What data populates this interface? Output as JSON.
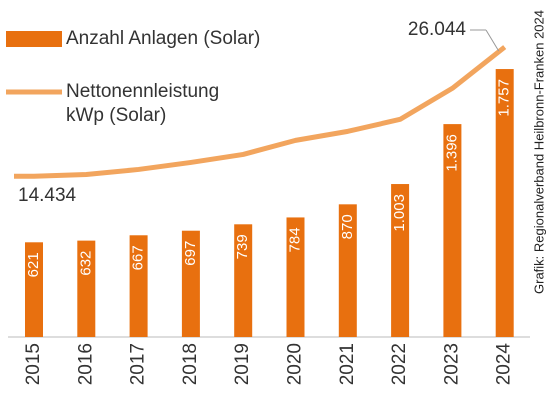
{
  "chart_data": {
    "type": "bar",
    "categories": [
      "2015",
      "2016",
      "2017",
      "2018",
      "2019",
      "2020",
      "2021",
      "2022",
      "2023",
      "2024"
    ],
    "series": [
      {
        "name": "Anzahl Anlagen (Solar)",
        "type": "bar",
        "color": "#e8700f",
        "values": [
          621,
          632,
          667,
          697,
          739,
          784,
          870,
          1003,
          1396,
          1757
        ],
        "value_labels": [
          "621",
          "632",
          "667",
          "697",
          "739",
          "784",
          "870",
          "1.003",
          "1.396",
          "1.757"
        ]
      },
      {
        "name": "Nettonennleistung kWp (Solar)",
        "type": "line",
        "axis": "y2",
        "color": "#f2a55e",
        "values": [
          14434,
          14600,
          15050,
          15680,
          16400,
          17660,
          18470,
          19550,
          22340,
          26044
        ],
        "value_labels": [
          "14.434",
          null,
          null,
          null,
          null,
          null,
          null,
          null,
          null,
          "26.044"
        ]
      }
    ],
    "ylim": [
      0,
      2000
    ],
    "y2lim": [
      0,
      30000
    ],
    "source": "Grafik: Regionalverband Heilbronn-Franken 2024"
  }
}
